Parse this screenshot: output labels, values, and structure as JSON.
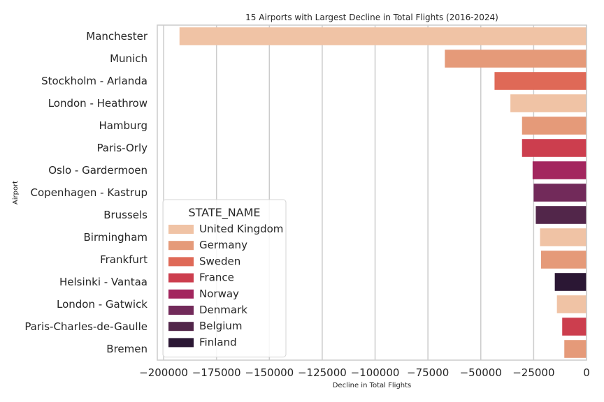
{
  "chart_data": {
    "type": "bar",
    "orientation": "horizontal",
    "title": "15 Airports with Largest Decline in Total Flights (2016-2024)",
    "xlabel": "Decline in Total Flights",
    "ylabel": "Airport",
    "xlim": [
      -203000,
      0
    ],
    "xticks": [
      -200000,
      -175000,
      -150000,
      -125000,
      -100000,
      -75000,
      -50000,
      -25000,
      0
    ],
    "xtick_labels": [
      "−200000",
      "−175000",
      "−150000",
      "−125000",
      "−100000",
      "−75000",
      "−50000",
      "−25000",
      "0"
    ],
    "grid": "vertical",
    "legend_title": "STATE_NAME",
    "legend_position": "lower-left",
    "legend": [
      {
        "label": "United Kingdom",
        "color": "#f0c3a5"
      },
      {
        "label": "Germany",
        "color": "#e59a79"
      },
      {
        "label": "Sweden",
        "color": "#df6957"
      },
      {
        "label": "France",
        "color": "#cc3e4e"
      },
      {
        "label": "Norway",
        "color": "#a3265e"
      },
      {
        "label": "Denmark",
        "color": "#722a5a"
      },
      {
        "label": "Belgium",
        "color": "#52264a"
      },
      {
        "label": "Finland",
        "color": "#2b1734"
      }
    ],
    "bars": [
      {
        "airport": "Manchester",
        "state": "United Kingdom",
        "value": -192500
      },
      {
        "airport": "Munich",
        "state": "Germany",
        "value": -67000
      },
      {
        "airport": "Stockholm - Arlanda",
        "state": "Sweden",
        "value": -43500
      },
      {
        "airport": "London - Heathrow",
        "state": "United Kingdom",
        "value": -36000
      },
      {
        "airport": "Hamburg",
        "state": "Germany",
        "value": -30500
      },
      {
        "airport": "Paris-Orly",
        "state": "France",
        "value": -30500
      },
      {
        "airport": "Oslo - Gardermoen",
        "state": "Norway",
        "value": -25500
      },
      {
        "airport": "Copenhagen - Kastrup",
        "state": "Denmark",
        "value": -25000
      },
      {
        "airport": "Brussels",
        "state": "Belgium",
        "value": -24000
      },
      {
        "airport": "Birmingham",
        "state": "United Kingdom",
        "value": -22000
      },
      {
        "airport": "Frankfurt",
        "state": "Germany",
        "value": -21500
      },
      {
        "airport": "Helsinki - Vantaa",
        "state": "Finland",
        "value": -15000
      },
      {
        "airport": "London - Gatwick",
        "state": "United Kingdom",
        "value": -14000
      },
      {
        "airport": "Paris-Charles-de-Gaulle",
        "state": "France",
        "value": -11500
      },
      {
        "airport": "Bremen",
        "state": "Germany",
        "value": -10500
      }
    ]
  }
}
